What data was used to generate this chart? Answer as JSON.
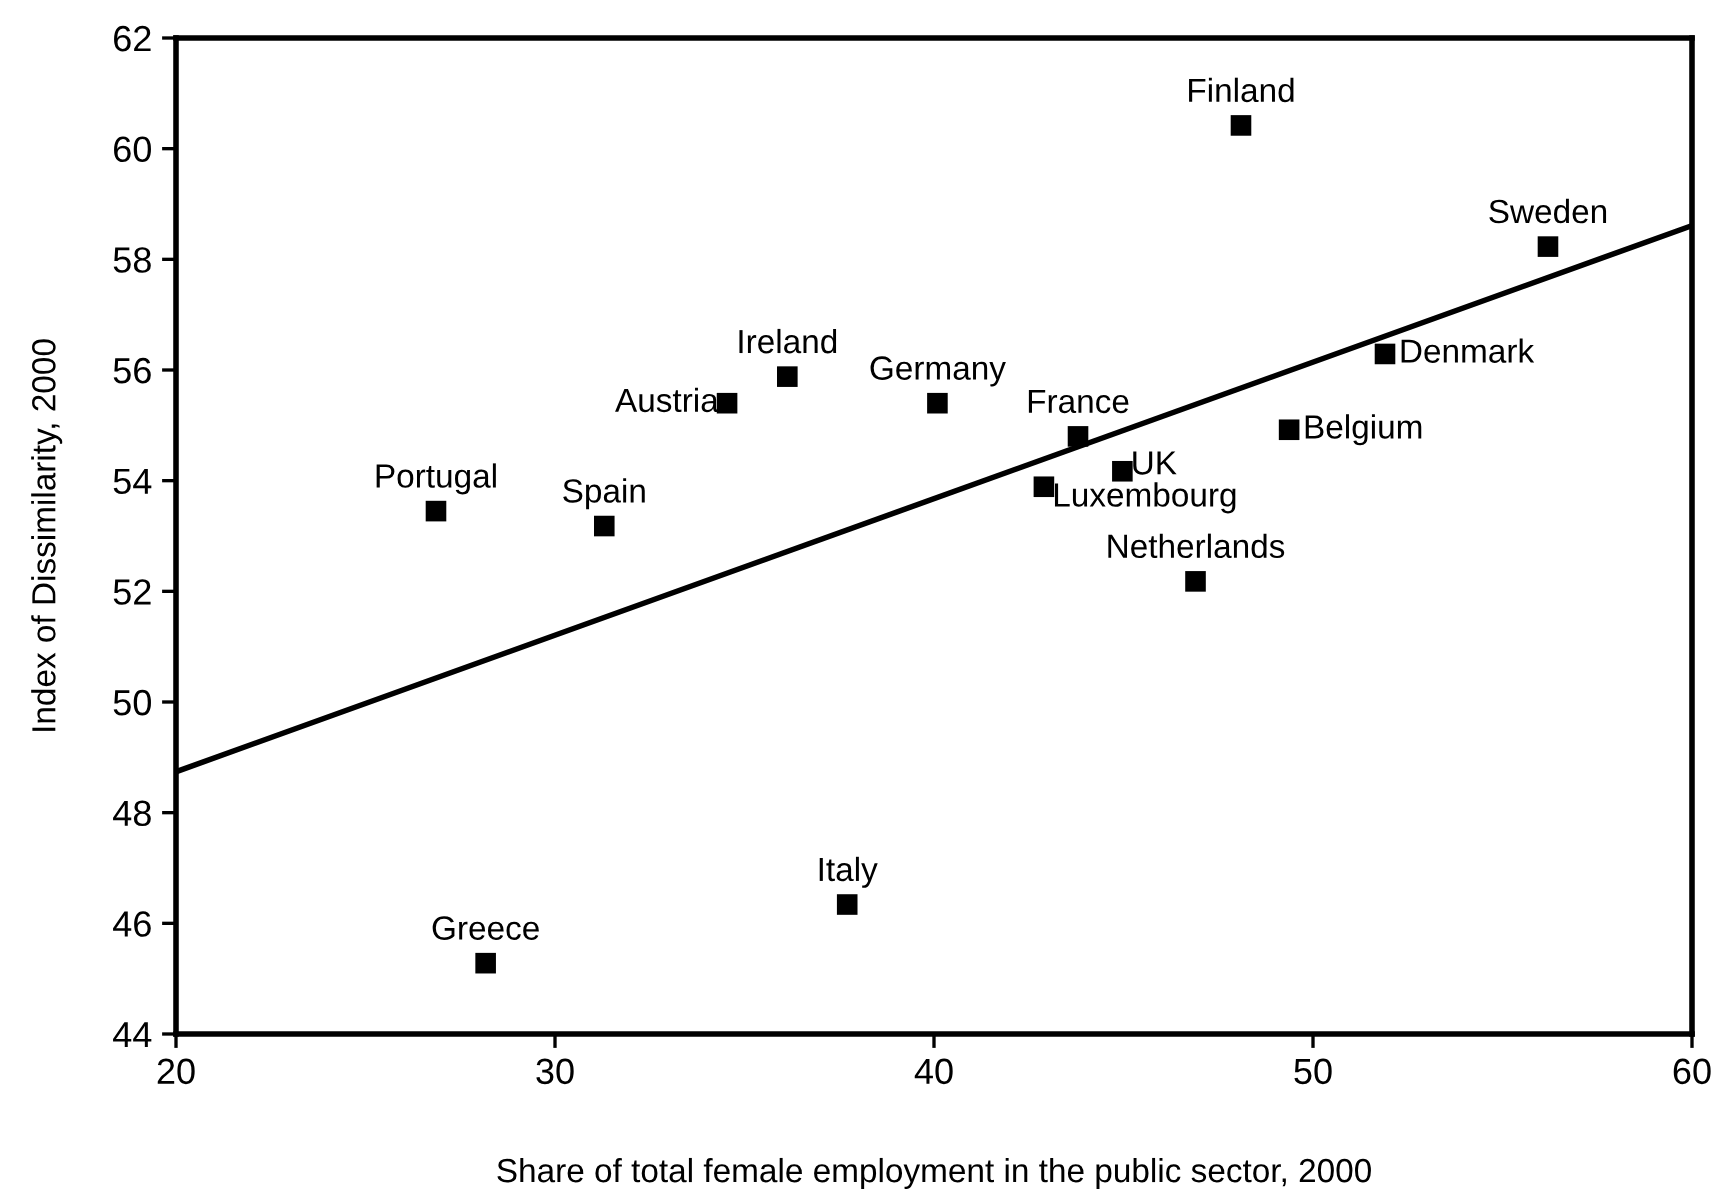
{
  "chart_data": {
    "type": "scatter",
    "xlabel": "Share of total female employment in the public sector, 2000",
    "ylabel": "Index of Dissimilarity, 2000",
    "xlim": [
      20,
      60
    ],
    "xticks": [
      20,
      30,
      40,
      50,
      60
    ],
    "ylim": [
      44,
      62
    ],
    "yticks": [
      44,
      46,
      48,
      50,
      52,
      54,
      56,
      58,
      60,
      62
    ],
    "grid": false,
    "series": [
      {
        "marker": "square",
        "color": "#000000",
        "x": [
          26.86,
          31.3,
          34.54,
          36.13,
          40.09,
          43.8,
          44.97,
          42.9,
          46.9,
          49.37,
          51.9,
          56.2,
          48.1,
          28.17,
          37.71
        ],
        "values": [
          53.45,
          53.18,
          55.4,
          55.88,
          55.4,
          54.8,
          54.17,
          53.89,
          52.18,
          54.92,
          56.29,
          58.23,
          60.42,
          45.28,
          46.34
        ],
        "value_labels": [
          "Portugal",
          "Spain",
          "Austria",
          "Ireland",
          "Germany",
          "France",
          "UK",
          "Luxembourg",
          "Netherlands",
          "Belgium",
          "Denmark",
          "Sweden",
          "Finland",
          "Greece",
          "Italy"
        ]
      },
      {
        "type": "line",
        "color": "#000000",
        "x": [
          20,
          60
        ],
        "values": [
          48.74,
          58.61
        ],
        "line_style": "solid"
      }
    ]
  }
}
